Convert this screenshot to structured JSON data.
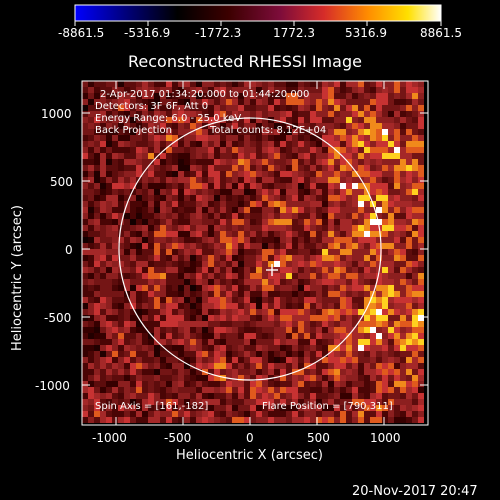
{
  "colorbar": {
    "labels": [
      "-8861.5",
      "-5316.9",
      "-1772.3",
      "1772.3",
      "5316.9",
      "8861.5"
    ],
    "colors": [
      "#0000ff",
      "#00007a",
      "#000000",
      "#3c0000",
      "#7d0c3a",
      "#d62c29",
      "#ff8c00",
      "#ffe000",
      "#ffffff"
    ]
  },
  "plot": {
    "title": "Reconstructed RHESSI Image",
    "xlabel": "Heliocentric X (arcsec)",
    "ylabel": "Heliocentric Y (arcsec)",
    "xticks": [
      "-1000",
      "-500",
      "0",
      "500",
      "1000"
    ],
    "yticks": [
      "1000",
      "500",
      "0",
      "-500",
      "-1000"
    ],
    "info_line_1": "2-Apr-2017 01:34:20.000 to 01:44:20.000",
    "info_line_2": "Detectors: 3F 6F, Att 0",
    "info_line_3": "Energy Range: 6.0 - 25.0 keV",
    "info_line_4a": "Back Projection",
    "info_line_4b": "Total counts: 8.12E+04",
    "spin_axis": "Spin Axis = [161,-182]",
    "flare_position": "Flare Position = [790,311]"
  },
  "footer": {
    "timestamp": "20-Nov-2017 20:47"
  },
  "image_style": {
    "background": "#000000",
    "axis_color": "#ffffff",
    "circle_color": "#ffffff",
    "cell_palette": [
      "#120000",
      "#220000",
      "#360000",
      "#4a0505",
      "#5d0c0c",
      "#741515",
      "#8c1f1f",
      "#a42828",
      "#c73232",
      "#e05a1d",
      "#f08a1b",
      "#ffd21f",
      "#ffffff"
    ],
    "marker": "plus"
  }
}
